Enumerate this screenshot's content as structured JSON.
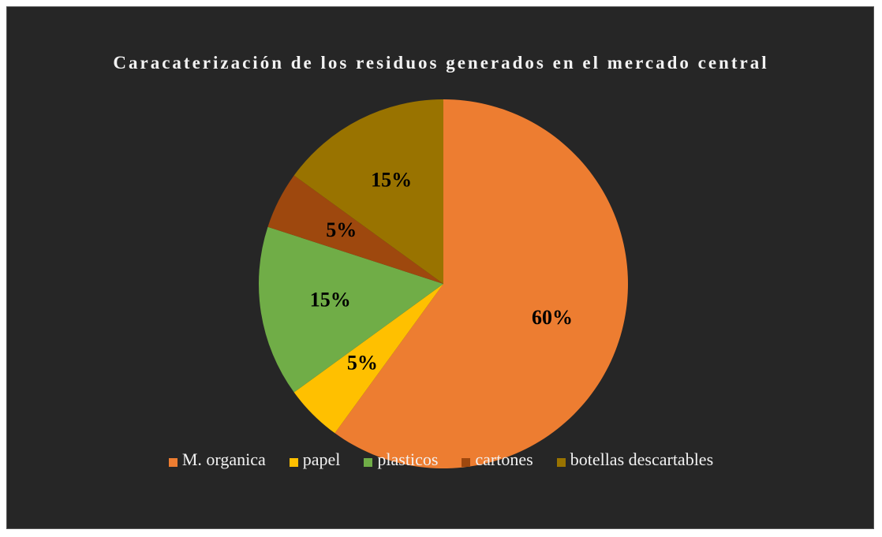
{
  "chart_data": {
    "type": "pie",
    "title": "Caracaterización de los residuos generados en el mercado central",
    "categories": [
      "M. organica",
      "papel",
      "plasticos",
      "cartones",
      "botellas descartables"
    ],
    "values": [
      60,
      5,
      15,
      5,
      15
    ],
    "value_labels": [
      "60%",
      "5%",
      "15%",
      "5%",
      "15%"
    ],
    "colors": [
      "#ed7d31",
      "#ffc000",
      "#70ad47",
      "#9e480e",
      "#997300"
    ],
    "legend": "bottom"
  }
}
